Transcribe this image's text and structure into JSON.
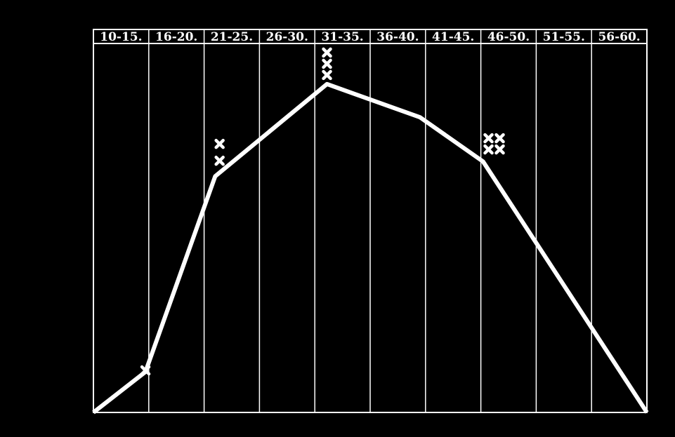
{
  "chart_data": {
    "type": "line",
    "title": "",
    "xlabel": "",
    "ylabel": "",
    "categories": [
      "10-15.",
      "16-20.",
      "21-25.",
      "26-30.",
      "31-35.",
      "36-40.",
      "41-45.",
      "46-50.",
      "51-55.",
      "56-60."
    ],
    "xlim": [
      10,
      60
    ],
    "ylim": [
      0,
      100
    ],
    "y_axis_labeled": false,
    "grid": "vertical lines between categories",
    "series": [
      {
        "x": [
          10,
          14.7,
          21,
          31.1,
          39.5,
          45.2,
          60
        ],
        "y": [
          0,
          11,
          64,
          89,
          80,
          68,
          0
        ]
      }
    ],
    "markers": [
      {
        "x": 14.7,
        "y": 11.4,
        "count": 1,
        "layout": "single"
      },
      {
        "x": 21.4,
        "y": 70.5,
        "count": 2,
        "layout": "column"
      },
      {
        "x": 31.1,
        "y": 94.5,
        "count": 3,
        "layout": "column"
      },
      {
        "x": 46.2,
        "y": 72.8,
        "count": 4,
        "layout": "grid"
      }
    ],
    "colors": {
      "background": "#000000",
      "foreground": "#ffffff"
    }
  }
}
